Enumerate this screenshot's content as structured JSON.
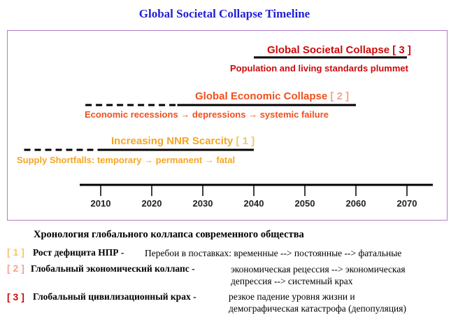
{
  "title": "Global Societal Collapse Timeline",
  "colors": {
    "title": "#1f1fd6",
    "frame": "#b07cc9",
    "scarcity": "#f5a623",
    "scarcity_num": "#f7c56a",
    "economic": "#f0501e",
    "economic_num": "#f2a58c",
    "societal": "#cc0a0a"
  },
  "chart_data": {
    "type": "timeline",
    "title": "Global Societal Collapse Timeline",
    "x_ticks": [
      "2010",
      "2020",
      "2030",
      "2040",
      "2050",
      "2060",
      "2070"
    ],
    "x_range": [
      2006,
      2075
    ],
    "phases": [
      {
        "id": 1,
        "title": "Increasing NNR Scarcity",
        "number": "[ 1 ]",
        "subtitle": "Supply Shortfalls: temporary → permanent → fatal",
        "dashed_from": 1995,
        "dashed_to": 2010,
        "solid_from": 2010,
        "solid_to": 2040
      },
      {
        "id": 2,
        "title": "Global Economic Collapse",
        "number": "[ 2 ]",
        "subtitle": "Economic recessions → depressions → systemic failure",
        "dashed_from": 2007,
        "dashed_to": 2025,
        "solid_from": 2025,
        "solid_to": 2060
      },
      {
        "id": 3,
        "title": "Global Societal Collapse",
        "number": "[ 3 ]",
        "subtitle": "Population and living standards plummet",
        "dashed_from": null,
        "dashed_to": null,
        "solid_from": 2040,
        "solid_to": 2070
      }
    ]
  },
  "russian": {
    "title": "Хронология глобального коллапса современного общества",
    "rows": [
      {
        "num": "[ 1 ]",
        "head": "Рост дефицита НПР -",
        "desc": [
          "Перебои в поставках: временные --> постоянные --> фатальные"
        ]
      },
      {
        "num": "[ 2 ]",
        "head": "Глобальный экономический коллапс -",
        "desc": [
          "экономическая рецессия  -->  экономическая",
          "депрессия  -->  системный крах"
        ]
      },
      {
        "num": "[ 3 ]",
        "head": "Глобальный цивилизационный крах -",
        "desc": [
          "резкое падение уровня жизни и",
          "демографическая катастрофа (депопуляция)"
        ]
      }
    ]
  }
}
